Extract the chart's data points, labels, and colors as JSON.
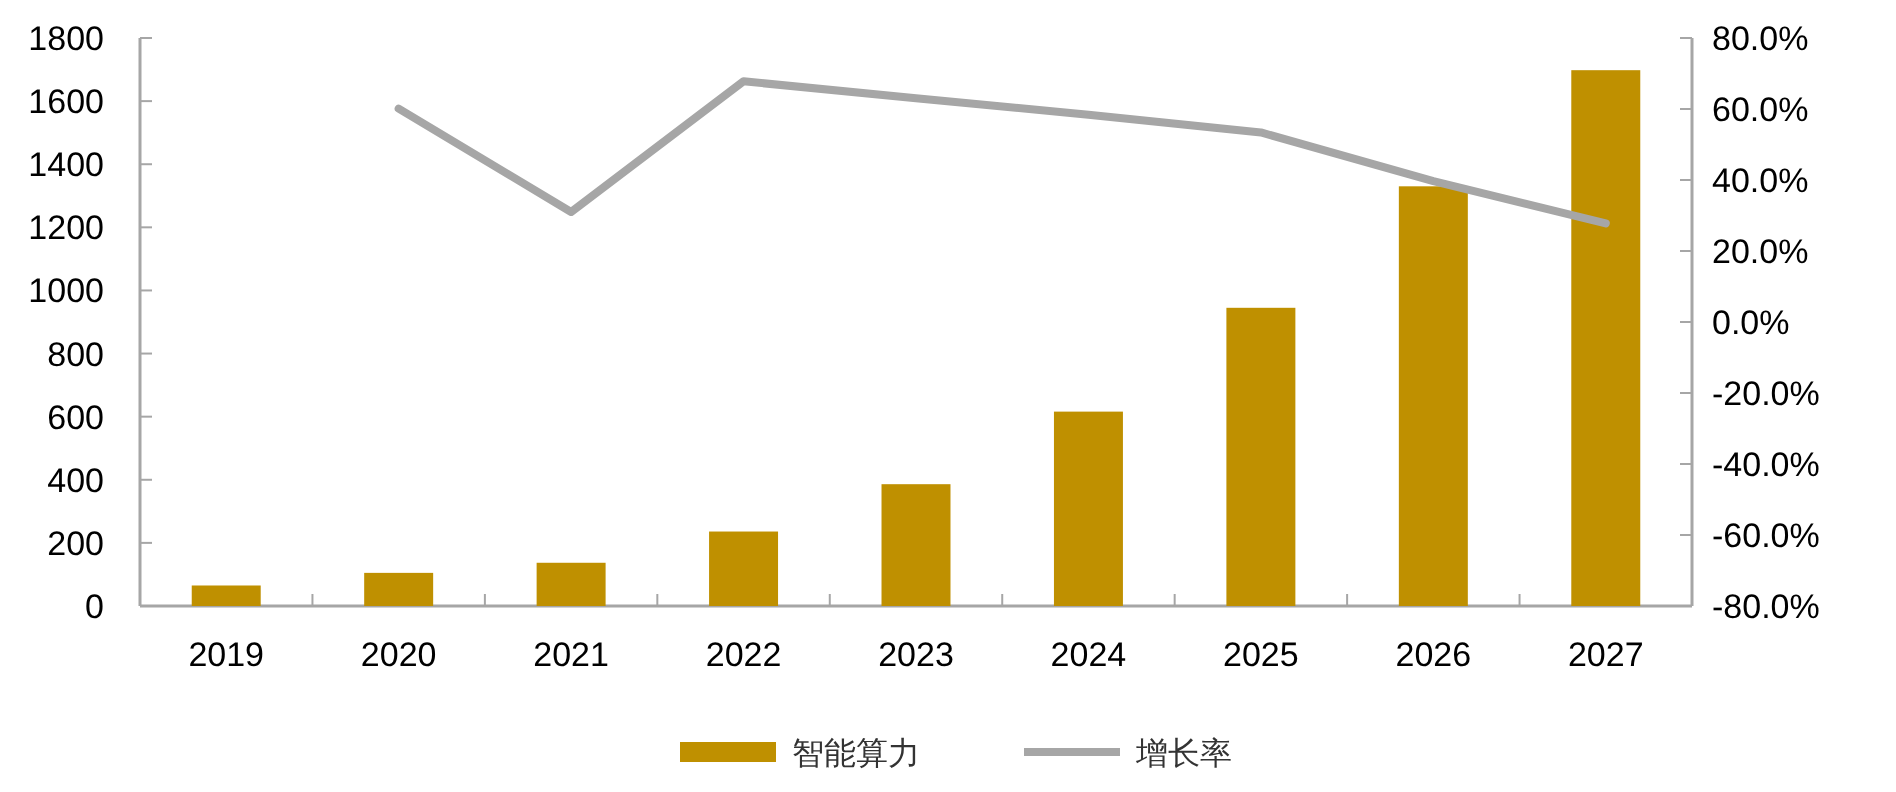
{
  "chart_data": {
    "type": "bar",
    "categories": [
      "2019",
      "2020",
      "2021",
      "2022",
      "2023",
      "2024",
      "2025",
      "2026",
      "2027"
    ],
    "series": [
      {
        "name": "智能算力",
        "color": "#bf9000",
        "values": [
          65,
          105,
          137,
          236,
          386,
          616,
          945,
          1330,
          1698
        ]
      },
      {
        "name": "增长率",
        "type": "line",
        "axis": "y2",
        "color": "#a6a6a6",
        "values": [
          null,
          60.1,
          31,
          67.8,
          63,
          58.4,
          53.4,
          39.7,
          27.8
        ]
      }
    ],
    "ylim": [
      0,
      1800
    ],
    "yticks": [
      0,
      200,
      400,
      600,
      800,
      1000,
      1200,
      1400,
      1600,
      1800
    ],
    "y2lim": [
      -80,
      80
    ],
    "y2ticks": [
      {
        "value": 80,
        "label": "80.0%"
      },
      {
        "value": 60,
        "label": "60.0%"
      },
      {
        "value": 40,
        "label": "40.0%"
      },
      {
        "value": 20,
        "label": "20.0%"
      },
      {
        "value": 0,
        "label": "0.0%"
      },
      {
        "value": -20,
        "label": "-20.0%"
      },
      {
        "value": -40,
        "label": "-40.0%"
      },
      {
        "value": -60,
        "label": "-60.0%"
      },
      {
        "value": -80,
        "label": "-80.0%"
      }
    ],
    "grid": false,
    "legend": "bottom",
    "marker": "none"
  }
}
